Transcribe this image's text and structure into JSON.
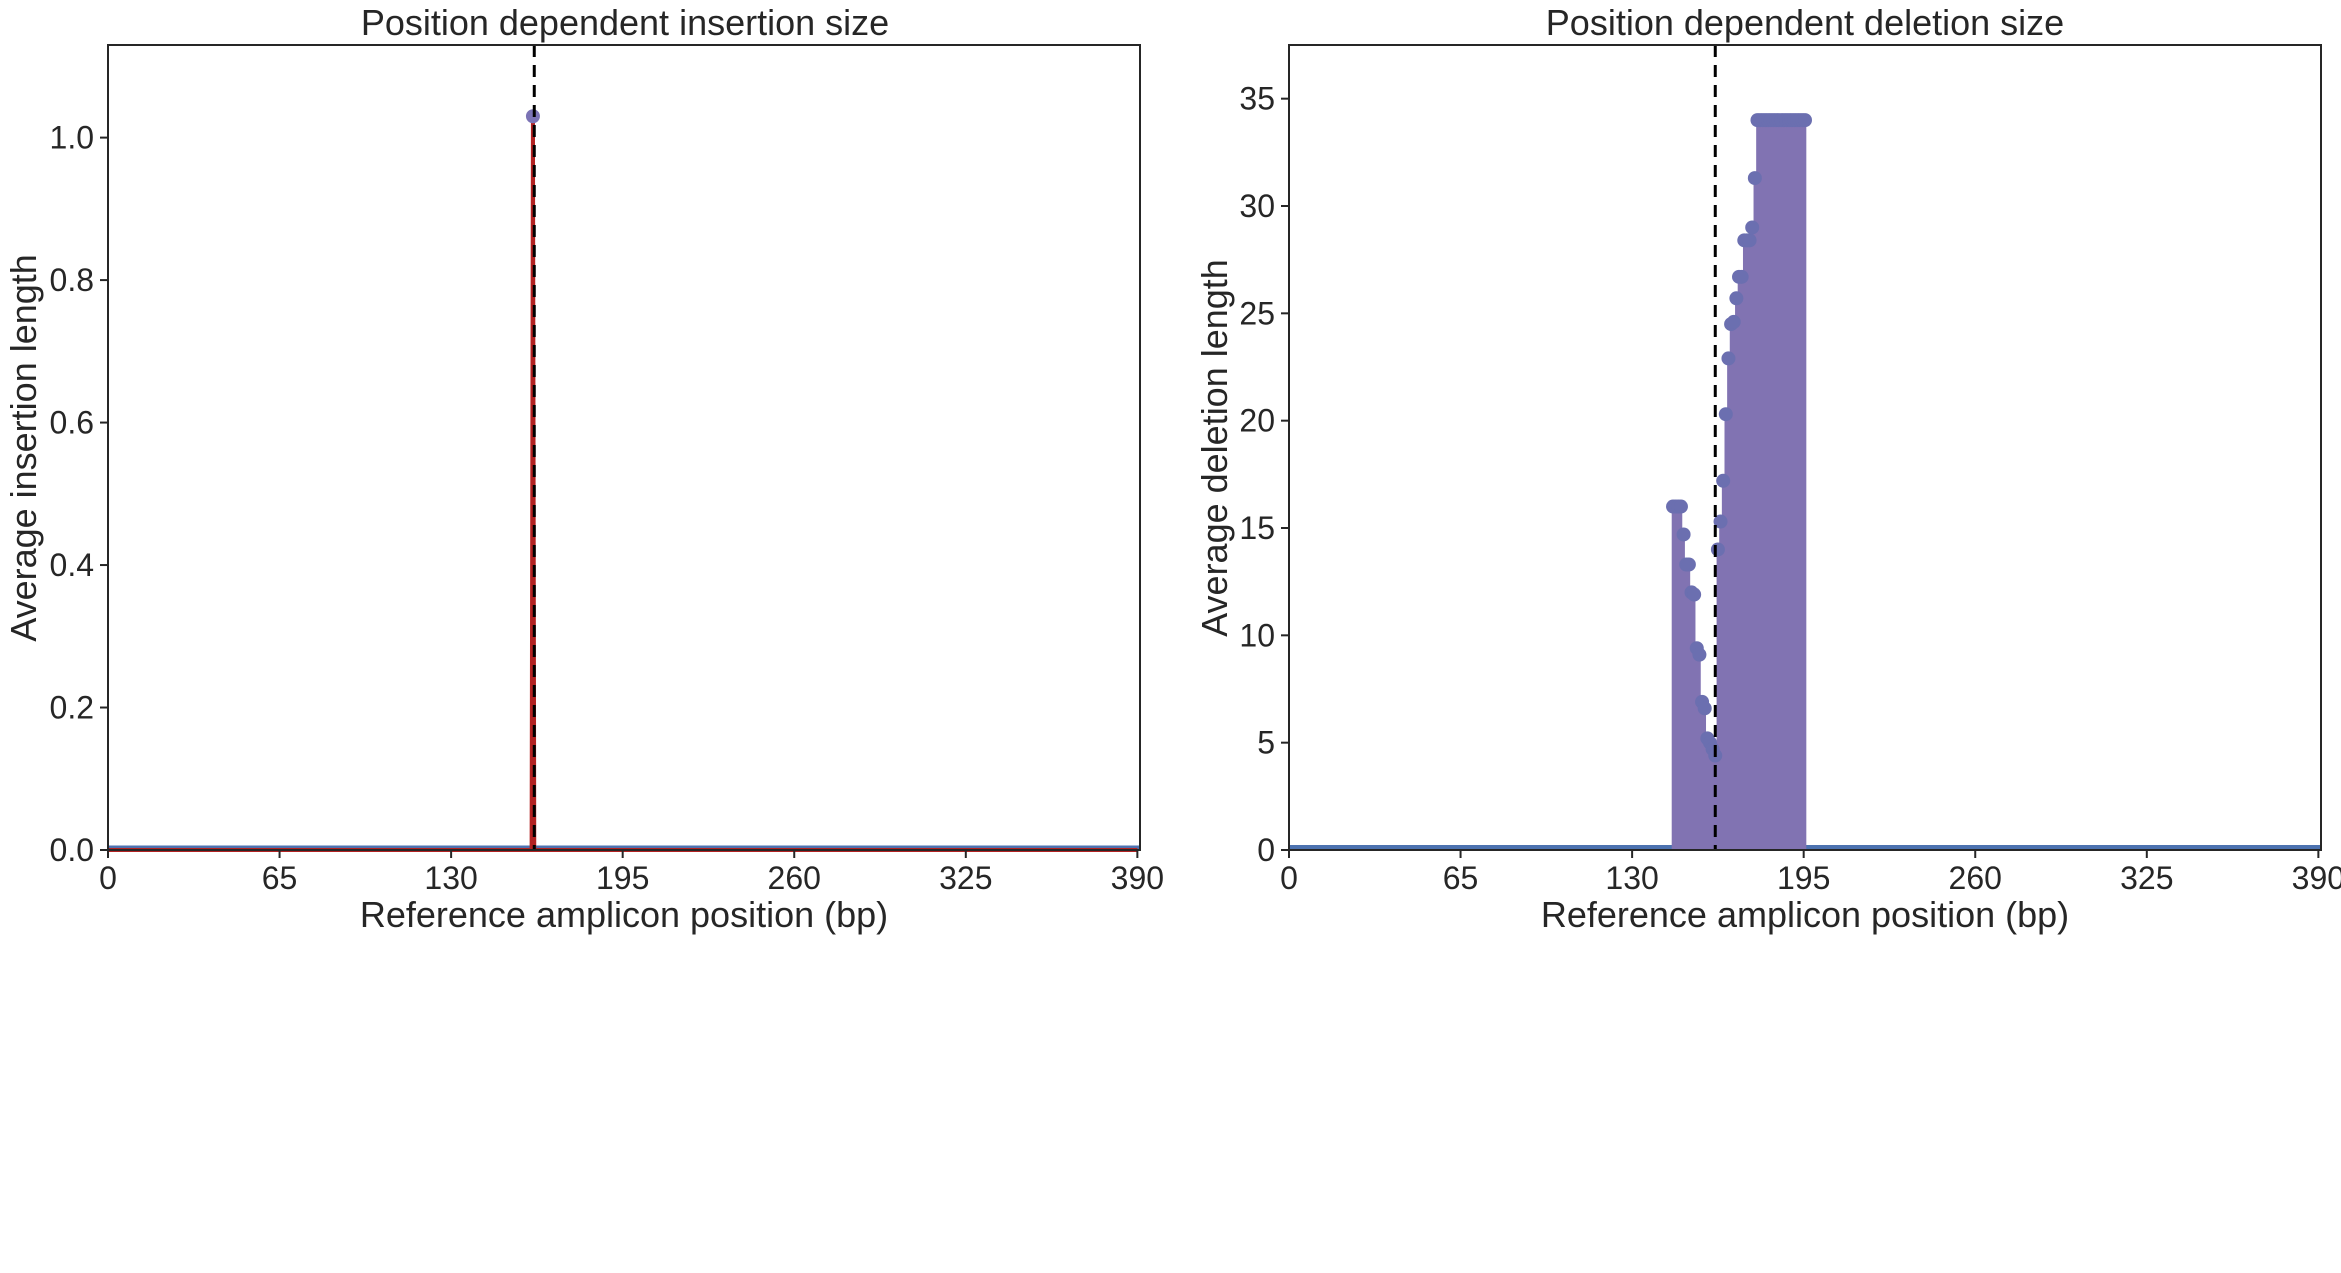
{
  "colors": {
    "insertion_line": "#b22222",
    "insertion_marker": "#7b73b5",
    "deletion_fill": "#8173b2",
    "deletion_marker": "#6b6fb0",
    "baseline": "#4c72b0",
    "cut_site": "#000000",
    "axes": "#262626"
  },
  "chart_data": [
    {
      "type": "line",
      "title": "Position dependent insertion size",
      "xlabel": "Reference amplicon position (bp)",
      "ylabel": "Average insertion length",
      "xlim": [
        0,
        391
      ],
      "ylim": [
        0,
        1.13
      ],
      "xticks": [
        0,
        65,
        130,
        195,
        260,
        325,
        390
      ],
      "yticks": [
        0.0,
        0.2,
        0.4,
        0.6,
        0.8,
        1.0
      ],
      "ytick_labels": [
        "0.0",
        "0.2",
        "0.4",
        "0.6",
        "0.8",
        "1.0"
      ],
      "cut_site": 161.5,
      "series": [
        {
          "x": [
            0,
            160.5,
            161,
            161.5,
            390
          ],
          "values": [
            0,
            0,
            1.03,
            0,
            0
          ]
        }
      ],
      "markers": [
        {
          "x": 161,
          "y": 1.03
        }
      ],
      "grid": false
    },
    {
      "type": "area",
      "title": "Position dependent deletion size",
      "xlabel": "Reference amplicon position (bp)",
      "ylabel": "Average deletion length",
      "xlim": [
        0,
        391
      ],
      "ylim": [
        0,
        37.5
      ],
      "xticks": [
        0,
        65,
        130,
        195,
        260,
        325,
        390
      ],
      "yticks": [
        0,
        5,
        10,
        15,
        20,
        25,
        30,
        35
      ],
      "ytick_labels": [
        "0",
        "5",
        "10",
        "15",
        "20",
        "25",
        "30",
        "35"
      ],
      "cut_site": 161.5,
      "series": [
        {
          "x": [
            145,
            146,
            147,
            148,
            149,
            150,
            151,
            152,
            153,
            154,
            155,
            156,
            157,
            158,
            159,
            160,
            161,
            162,
            163,
            164,
            165,
            166,
            167,
            168,
            169,
            170,
            171,
            172,
            173,
            174,
            175,
            176,
            177,
            178,
            179,
            180,
            181,
            182,
            183,
            184,
            185,
            186,
            187,
            188,
            189,
            190,
            191,
            192,
            193,
            194,
            195
          ],
          "values": [
            16,
            16,
            16,
            16,
            14.7,
            13.3,
            13.3,
            12,
            11.9,
            9.4,
            9.1,
            6.9,
            6.6,
            5.2,
            5.0,
            4.7,
            4.4,
            14.0,
            15.3,
            17.2,
            20.3,
            22.9,
            24.5,
            24.6,
            25.7,
            26.7,
            26.7,
            28.4,
            28.4,
            28.4,
            29.0,
            31.3,
            34.0,
            34.0,
            34.0,
            34.0,
            34.0,
            34.0,
            34.0,
            34.0,
            34.0,
            34.0,
            34.0,
            34.0,
            34.0,
            34.0,
            34.0,
            34.0,
            34.0,
            34.0,
            34.0
          ]
        }
      ],
      "grid": false
    }
  ]
}
